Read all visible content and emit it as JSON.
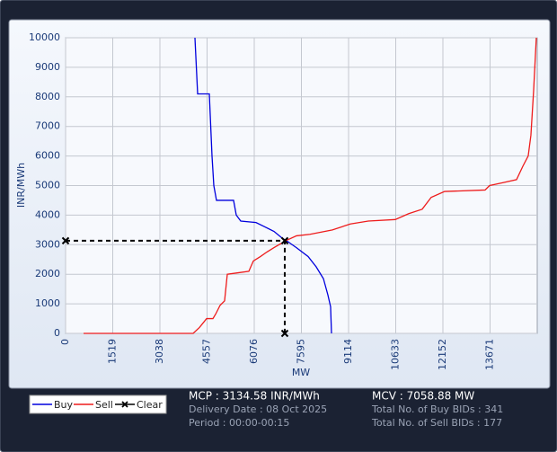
{
  "chart_data": {
    "type": "line",
    "ylabel": "INR/MWh",
    "xlabel": "MW",
    "xlim": [
      0,
      15190
    ],
    "ylim": [
      0,
      10000
    ],
    "xticks": [
      0,
      1519,
      3038,
      4557,
      6076,
      7595,
      9114,
      10633,
      12152,
      13671
    ],
    "yticks": [
      0,
      1000,
      2000,
      3000,
      4000,
      5000,
      6000,
      7000,
      8000,
      9000,
      10000
    ],
    "grid": true,
    "series": [
      {
        "name": "Buy",
        "color": "#0000dd",
        "x": [
          4166,
          4253,
          4629,
          4716,
          4774,
          4860,
          5410,
          5497,
          5642,
          6133,
          6423,
          6712,
          7001,
          7117,
          7435,
          7811,
          8072,
          8304,
          8448,
          8535,
          8564
        ],
        "values": [
          10000,
          8100,
          8100,
          6000,
          5000,
          4500,
          4500,
          4000,
          3800,
          3750,
          3600,
          3450,
          3200,
          3134,
          2900,
          2600,
          2250,
          1850,
          1300,
          900,
          0
        ]
      },
      {
        "name": "Sell",
        "color": "#ee1c1c",
        "x": [
          579,
          4108,
          4311,
          4542,
          4745,
          4832,
          4976,
          5121,
          5208,
          5555,
          5902,
          6047,
          6278,
          6480,
          6712,
          7088,
          7435,
          7869,
          8593,
          9171,
          9749,
          10617,
          11051,
          11485,
          11774,
          12208,
          13510,
          13655,
          14089,
          14523,
          14725,
          14899,
          14986,
          15073,
          15160
        ],
        "values": [
          0,
          0,
          200,
          500,
          500,
          650,
          950,
          1100,
          2000,
          2050,
          2100,
          2450,
          2600,
          2750,
          2900,
          3134,
          3300,
          3350,
          3500,
          3700,
          3800,
          3850,
          4050,
          4200,
          4600,
          4800,
          4850,
          5000,
          5100,
          5200,
          5650,
          6000,
          6700,
          8200,
          10000
        ]
      },
      {
        "name": "Clear",
        "color": "#000000",
        "dashed": true,
        "x": [
          0,
          7058.88,
          7058.88
        ],
        "values": [
          3134.58,
          3134.58,
          0
        ]
      }
    ],
    "annotations": [
      "MCP : 3134.58 INR/MWh",
      "Delivery Date : 08 Oct 2025",
      "Period :  00:00-00:15",
      "MCV : 7058.88 MW",
      "Total No. of Buy BIDs : 341",
      "Total No. of Sell BIDs : 177"
    ]
  }
}
